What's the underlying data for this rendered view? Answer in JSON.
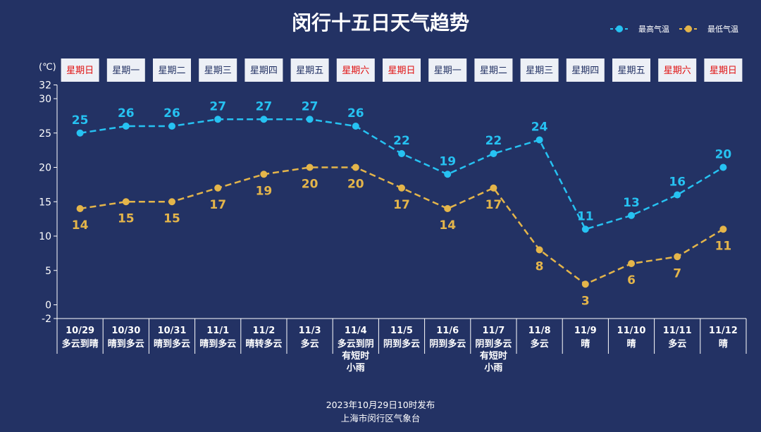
{
  "title": "闵行十五日天气趋势",
  "unit": "(℃)",
  "legend": [
    {
      "label": "最高气温",
      "color": "#26c2f2"
    },
    {
      "label": "最低气温",
      "color": "#e4b54a"
    }
  ],
  "weekday_color_weekend": "#e01010",
  "weekday_color_weekday": "#233264",
  "footer": {
    "line1": "2023年10月29日10时发布",
    "line2": "上海市闵行区气象台"
  },
  "chart_data": {
    "type": "line",
    "categories": [
      "10/29",
      "10/30",
      "10/31",
      "11/1",
      "11/2",
      "11/3",
      "11/4",
      "11/5",
      "11/6",
      "11/7",
      "11/8",
      "11/9",
      "11/10",
      "11/11",
      "11/12"
    ],
    "weekdays": [
      {
        "label": "星期日",
        "weekend": true
      },
      {
        "label": "星期一",
        "weekend": false
      },
      {
        "label": "星期二",
        "weekend": false
      },
      {
        "label": "星期三",
        "weekend": false
      },
      {
        "label": "星期四",
        "weekend": false
      },
      {
        "label": "星期五",
        "weekend": false
      },
      {
        "label": "星期六",
        "weekend": true
      },
      {
        "label": "星期日",
        "weekend": true
      },
      {
        "label": "星期一",
        "weekend": false
      },
      {
        "label": "星期二",
        "weekend": false
      },
      {
        "label": "星期三",
        "weekend": false
      },
      {
        "label": "星期四",
        "weekend": false
      },
      {
        "label": "星期五",
        "weekend": false
      },
      {
        "label": "星期六",
        "weekend": true
      },
      {
        "label": "星期日",
        "weekend": true
      }
    ],
    "weather": [
      [
        "多云到晴"
      ],
      [
        "晴到多云"
      ],
      [
        "晴到多云"
      ],
      [
        "晴到多云"
      ],
      [
        "晴转多云"
      ],
      [
        "多云"
      ],
      [
        "多云到阴",
        "有短时",
        "小雨"
      ],
      [
        "阴到多云"
      ],
      [
        "阴到多云"
      ],
      [
        "阴到多云",
        "有短时",
        "小雨"
      ],
      [
        "多云"
      ],
      [
        "晴"
      ],
      [
        "晴"
      ],
      [
        "多云"
      ],
      [
        "晴"
      ]
    ],
    "series": [
      {
        "name": "最高气温",
        "color": "#26c2f2",
        "values": [
          25,
          26,
          26,
          27,
          27,
          27,
          26,
          22,
          19,
          22,
          24,
          11,
          13,
          16,
          20
        ]
      },
      {
        "name": "最低气温",
        "color": "#e4b54a",
        "values": [
          14,
          15,
          15,
          17,
          19,
          20,
          20,
          17,
          14,
          17,
          8,
          3,
          6,
          7,
          11
        ]
      }
    ],
    "y_ticks": [
      -2,
      0,
      5,
      10,
      15,
      20,
      25,
      30,
      32
    ],
    "ylim": [
      -2,
      32
    ],
    "line_style": "dashed",
    "legend_position": "top-right"
  }
}
